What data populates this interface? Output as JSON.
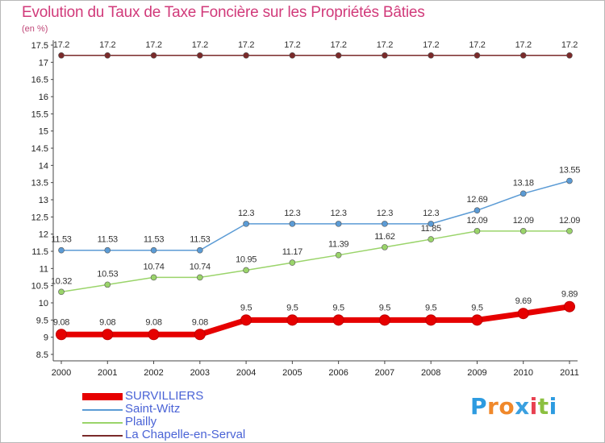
{
  "title": "Evolution du Taux de Taxe Foncière sur les Propriétés Bâties",
  "subtitle": "(en %)",
  "brand": {
    "text": "ProXiti",
    "letters": [
      "P",
      "r",
      "o",
      "x",
      "i",
      "t",
      "i"
    ],
    "colors": [
      "#2d9be0",
      "#f0882a",
      "#f0882a",
      "#3aa0e0",
      "#e84050",
      "#8cc040",
      "#2d9be0"
    ]
  },
  "colors": {
    "title": "#d13a7a",
    "legend_text": "#4a63d6",
    "axis_text": "#222222",
    "grid": "#dddddd"
  },
  "chart_data": {
    "type": "line",
    "title": "Evolution du Taux de Taxe Foncière sur les Propriétés Bâties",
    "ylabel": "(en %)",
    "xlabel": "",
    "categories": [
      "2000",
      "2001",
      "2002",
      "2003",
      "2004",
      "2005",
      "2006",
      "2007",
      "2008",
      "2009",
      "2010",
      "2011"
    ],
    "ylim": [
      8.5,
      17.5
    ],
    "yticks": [
      "8.5",
      "9",
      "9.5",
      "10",
      "10.5",
      "11",
      "11.5",
      "12",
      "12.5",
      "13",
      "13.5",
      "14",
      "14.5",
      "15",
      "15.5",
      "16",
      "16.5",
      "17",
      "17.5"
    ],
    "grid": false,
    "legend_placement": "bottom-left",
    "series": [
      {
        "name": "La Chapelle-en-Serval",
        "color": "#7a2a2a",
        "values": [
          17.2,
          17.2,
          17.2,
          17.2,
          17.2,
          17.2,
          17.2,
          17.2,
          17.2,
          17.2,
          17.2,
          17.2
        ],
        "labels": [
          "17.2",
          "17.2",
          "17.2",
          "17.2",
          "17.2",
          "17.2",
          "17.2",
          "17.2",
          "17.2",
          "17.2",
          "17.2",
          "17.2"
        ]
      },
      {
        "name": "Saint-Witz",
        "color": "#5b9bd5",
        "values": [
          11.53,
          11.53,
          11.53,
          11.53,
          12.3,
          12.3,
          12.3,
          12.3,
          12.3,
          12.69,
          13.18,
          13.55
        ],
        "labels": [
          "11.53",
          "11.53",
          "11.53",
          "11.53",
          "12.3",
          "12.3",
          "12.3",
          "12.3",
          "12.3",
          "12.69",
          "13.18",
          "13.55"
        ]
      },
      {
        "name": "Plailly",
        "color": "#9ad46a",
        "values": [
          10.32,
          10.53,
          10.74,
          10.74,
          10.95,
          11.17,
          11.39,
          11.62,
          11.85,
          12.09,
          12.09,
          12.09
        ],
        "labels": [
          "10.32",
          "10.53",
          "10.74",
          "10.74",
          "10.95",
          "11.17",
          "11.39",
          "11.62",
          "11.85",
          "12.09",
          "12.09",
          "12.09"
        ]
      },
      {
        "name": "SURVILLIERS",
        "color": "#e60000",
        "values": [
          9.08,
          9.08,
          9.08,
          9.08,
          9.5,
          9.5,
          9.5,
          9.5,
          9.5,
          9.5,
          9.69,
          9.89
        ],
        "labels": [
          "9.08",
          "9.08",
          "9.08",
          "9.08",
          "9.5",
          "9.5",
          "9.5",
          "9.5",
          "9.5",
          "9.5",
          "9.69",
          "9.89"
        ]
      }
    ],
    "legend": [
      "SURVILLIERS",
      "Saint-Witz",
      "Plailly",
      "La Chapelle-en-Serval"
    ]
  }
}
